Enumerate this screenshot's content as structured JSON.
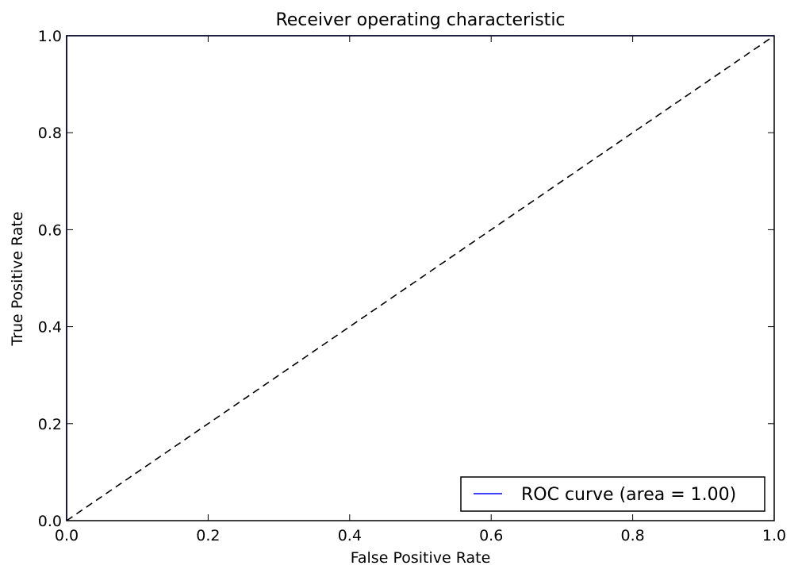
{
  "chart_data": {
    "type": "line",
    "title": "Receiver operating characteristic",
    "xlabel": "False Positive Rate",
    "ylabel": "True Positive Rate",
    "xlim": [
      0.0,
      1.0
    ],
    "ylim": [
      0.0,
      1.0
    ],
    "x_ticks": [
      0.0,
      0.2,
      0.4,
      0.6,
      0.8,
      1.0
    ],
    "y_ticks": [
      0.0,
      0.2,
      0.4,
      0.6,
      0.8,
      1.0
    ],
    "x_tick_labels": [
      "0.0",
      "0.2",
      "0.4",
      "0.6",
      "0.8",
      "1.0"
    ],
    "y_tick_labels": [
      "0.0",
      "0.2",
      "0.4",
      "0.6",
      "0.8",
      "1.0"
    ],
    "grid": false,
    "legend_position": "bottom-right",
    "series": [
      {
        "name": "ROC curve (area = 1.00)",
        "color": "#0000ff",
        "style": "solid",
        "x": [
          0.0,
          0.0,
          1.0
        ],
        "y": [
          0.0,
          1.0,
          1.0
        ]
      },
      {
        "color": "#000000",
        "style": "dashed",
        "x": [
          0.0,
          1.0
        ],
        "y": [
          0.0,
          1.0
        ]
      }
    ]
  }
}
